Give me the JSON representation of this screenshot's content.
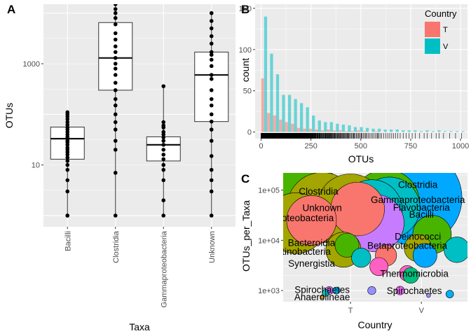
{
  "panel_letters": [
    "A",
    "B",
    "C"
  ],
  "chart_data": [
    {
      "type": "box",
      "panel": "A",
      "title": "",
      "xlabel": "Taxa",
      "ylabel": "OTUs",
      "y_scale": "log10",
      "ylim": [
        0.6,
        15000
      ],
      "y_ticks": [
        10,
        1000
      ],
      "y_tick_labels": [
        "10",
        "1000"
      ],
      "categories": [
        "Bacilli",
        "Clostridia",
        "Gammaproteobacteria",
        "Unknown"
      ],
      "boxes": [
        {
          "q1": 13,
          "median": 33,
          "q3": 56,
          "whisker_low": 1,
          "whisker_high": 110
        },
        {
          "q1": 300,
          "median": 1300,
          "q3": 6500,
          "whisker_low": 1,
          "whisker_high": 18000
        },
        {
          "q1": 12,
          "median": 25,
          "q3": 36,
          "whisker_low": 1,
          "whisker_high": 360
        },
        {
          "q1": 72,
          "median": 600,
          "q3": 1700,
          "whisker_low": 1,
          "whisker_high": 10000
        }
      ],
      "points": [
        [
          1,
          1,
          3,
          5,
          8,
          10,
          12,
          14,
          16,
          18,
          20,
          22,
          25,
          28,
          30,
          33,
          36,
          40,
          45,
          50,
          55,
          62,
          70,
          80,
          90,
          100,
          110
        ],
        [
          1,
          7,
          20,
          30,
          50,
          70,
          100,
          150,
          200,
          300,
          420,
          600,
          800,
          1000,
          1300,
          1700,
          2200,
          3000,
          4000,
          6000,
          8000,
          10000,
          12000,
          15000,
          18000
        ],
        [
          1,
          2,
          5,
          8,
          10,
          13,
          16,
          20,
          25,
          30,
          35,
          40,
          45,
          55,
          60,
          70,
          360
        ],
        [
          1,
          3,
          5,
          8,
          15,
          30,
          50,
          72,
          100,
          150,
          200,
          300,
          500,
          600,
          900,
          1200,
          1500,
          1700,
          2500,
          3500,
          5000,
          7000,
          10000
        ]
      ]
    },
    {
      "type": "histogram",
      "panel": "B",
      "title": "",
      "xlabel": "OTUs",
      "ylabel": "count",
      "xlim": [
        -30,
        1035
      ],
      "ylim": [
        -8,
        155
      ],
      "x_ticks": [
        0,
        250,
        500,
        750,
        1000
      ],
      "y_ticks": [
        0,
        50,
        100,
        150
      ],
      "bin_width": 30,
      "legend_title": "Country",
      "legend_position": "top-right",
      "series": [
        {
          "name": "T",
          "color": "#F8766D",
          "counts": [
            65,
            23,
            20,
            15,
            12,
            10,
            5,
            4,
            4,
            3,
            2,
            3,
            2,
            2,
            1,
            1,
            2,
            1,
            0,
            1,
            0,
            0,
            0,
            0,
            0,
            0,
            0,
            0,
            0,
            0,
            0,
            0,
            0,
            0
          ]
        },
        {
          "name": "V",
          "color": "#00BFC4",
          "counts": [
            140,
            95,
            70,
            45,
            45,
            40,
            35,
            30,
            20,
            14,
            12,
            12,
            10,
            9,
            8,
            6,
            6,
            5,
            4,
            4,
            3,
            3,
            3,
            2,
            2,
            2,
            1,
            2,
            1,
            2,
            1,
            1,
            1,
            1
          ]
        }
      ]
    },
    {
      "type": "bubble",
      "panel": "C",
      "title": "",
      "xlabel": "Country",
      "ylabel": "OTUs_per_Taxa",
      "categories": [
        "T",
        "V"
      ],
      "y_scale": "log10",
      "y_ticks": [
        1000,
        10000,
        100000
      ],
      "y_tick_labels": [
        "1e+03",
        "1e+04",
        "1e+05"
      ],
      "bubbles": [
        {
          "x": 0.0,
          "y": 100000,
          "size": 130000,
          "color": "#49B400",
          "label": ""
        },
        {
          "x": 0.55,
          "y": 45000,
          "size": 60000,
          "color": "#A3A500",
          "label": ""
        },
        {
          "x": 1.85,
          "y": 70000,
          "size": 110000,
          "color": "#00A9FF",
          "label": ""
        },
        {
          "x": 1.45,
          "y": 55000,
          "size": 55000,
          "color": "#49B400",
          "label": ""
        },
        {
          "x": 1.5,
          "y": 45000,
          "size": 45000,
          "color": "#00BFC4",
          "label": ""
        },
        {
          "x": 0.95,
          "y": 45000,
          "size": 55000,
          "color": "#A3A500",
          "label": ""
        },
        {
          "x": 1.05,
          "y": 42000,
          "size": 35000,
          "color": "#F8766D",
          "label": ""
        },
        {
          "x": 1.25,
          "y": 40000,
          "size": 45000,
          "color": "#00BFC4",
          "label": ""
        },
        {
          "x": 1.3,
          "y": 22000,
          "size": 40000,
          "color": "#C77CFF",
          "label": ""
        },
        {
          "x": 0.4,
          "y": 25000,
          "size": 30000,
          "color": "#F8766D",
          "label": ""
        },
        {
          "x": 0.18,
          "y": 22000,
          "size": 45000,
          "color": "#A3A500",
          "label": ""
        },
        {
          "x": 2.1,
          "y": 13000,
          "size": 18000,
          "color": "#49B400",
          "label": ""
        },
        {
          "x": 0.85,
          "y": 6500,
          "size": 15000,
          "color": "#A3A500",
          "label": ""
        },
        {
          "x": 1.9,
          "y": 7000,
          "size": 9000,
          "color": "#A3A500",
          "label": ""
        },
        {
          "x": 2.45,
          "y": 6500,
          "size": 8000,
          "color": "#00BFC4",
          "label": ""
        },
        {
          "x": 0.9,
          "y": 8000,
          "size": 7000,
          "color": "#49B400",
          "label": ""
        },
        {
          "x": 2.0,
          "y": 5000,
          "size": 7000,
          "color": "#00A9FF",
          "label": ""
        },
        {
          "x": 1.45,
          "y": 5000,
          "size": 5500,
          "color": "#F8766D",
          "label": ""
        },
        {
          "x": 1.1,
          "y": 4500,
          "size": 4500,
          "color": "#00BFC4",
          "label": ""
        },
        {
          "x": 1.35,
          "y": 3000,
          "size": 4000,
          "color": "#FF61C3",
          "label": ""
        },
        {
          "x": 1.75,
          "y": 2200,
          "size": 3000,
          "color": "#FF61C3",
          "label": ""
        },
        {
          "x": 1.8,
          "y": 2000,
          "size": 3000,
          "color": "#00BF7D",
          "label": ""
        },
        {
          "x": 0.65,
          "y": 1000,
          "size": 800,
          "color": "#E76BF3",
          "label": ""
        },
        {
          "x": 0.75,
          "y": 1000,
          "size": 600,
          "color": "#00B0F6",
          "label": ""
        },
        {
          "x": 0.6,
          "y": 900,
          "size": 600,
          "color": "#00BFC4",
          "label": ""
        },
        {
          "x": 1.25,
          "y": 1000,
          "size": 800,
          "color": "#9590FF",
          "label": ""
        },
        {
          "x": 1.65,
          "y": 1000,
          "size": 900,
          "color": "#E76BF3",
          "label": ""
        },
        {
          "x": 2.35,
          "y": 850,
          "size": 700,
          "color": "#00B0F6",
          "label": ""
        },
        {
          "x": 2.05,
          "y": 800,
          "size": 200,
          "color": "#9590FF",
          "label": ""
        },
        {
          "x": 0.55,
          "y": 750,
          "size": 200,
          "color": "#D89000",
          "label": ""
        }
      ],
      "labels": [
        {
          "text": "Clostridia",
          "x": 1.9,
          "y": 130000
        },
        {
          "text": "Clostridia",
          "x": 0.5,
          "y": 95000
        },
        {
          "text": "Gammaproteobacteria",
          "x": 1.9,
          "y": 65000
        },
        {
          "text": "Flavobacteria",
          "x": 1.95,
          "y": 46000
        },
        {
          "text": "Bacilli",
          "x": 1.95,
          "y": 33000
        },
        {
          "text": "Unknown",
          "x": 0.55,
          "y": 45000
        },
        {
          "text": "Betaproteobacteria",
          "x": 0.15,
          "y": 28000
        },
        {
          "text": "Deinococci",
          "x": 1.9,
          "y": 12000
        },
        {
          "text": "Bacteroidia",
          "x": 0.4,
          "y": 9000
        },
        {
          "text": "Betaproteobacteria",
          "x": 1.75,
          "y": 8000
        },
        {
          "text": "Actinobacteria",
          "x": 0.25,
          "y": 6000
        },
        {
          "text": "Synergistia",
          "x": 0.4,
          "y": 3500
        },
        {
          "text": "Thermomicrobia",
          "x": 1.85,
          "y": 2200
        },
        {
          "text": "Spirochaetes",
          "x": 0.55,
          "y": 1050
        },
        {
          "text": "Spirochaetes",
          "x": 1.85,
          "y": 1000
        },
        {
          "text": "Anaerolineae",
          "x": 0.55,
          "y": 750
        }
      ]
    }
  ]
}
